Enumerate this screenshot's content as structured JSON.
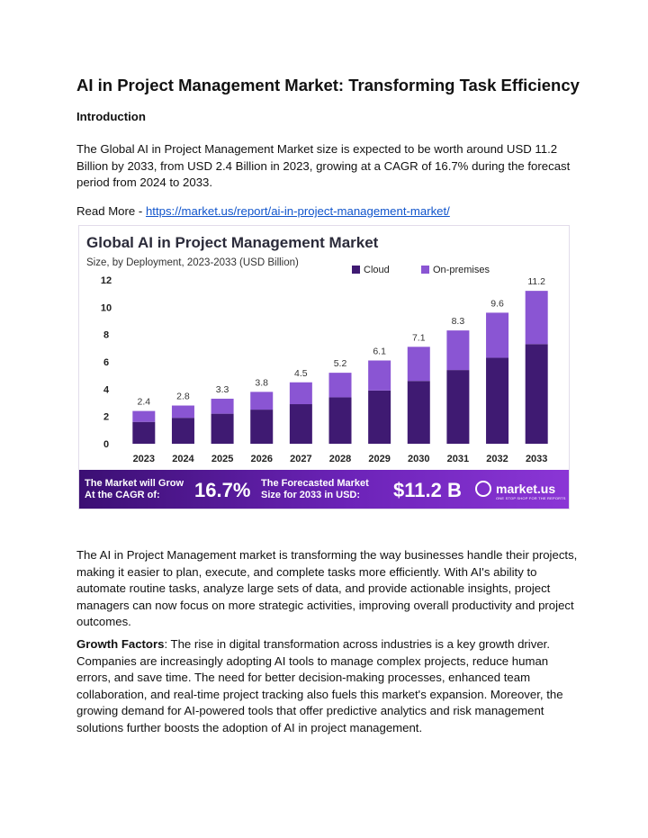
{
  "title": "AI in Project Management Market: Transforming Task Efficiency",
  "intro_heading": "Introduction",
  "paragraph1": "The Global AI in Project Management Market size is expected to be worth around USD 11.2 Billion by 2033, from USD 2.4 Billion in 2023, growing at a CAGR of 16.7% during the forecast period from 2024 to 2033.",
  "read_more_label": "Read More - ",
  "read_more_link": "https://market.us/report/ai-in-project-management-market/",
  "chart_data": {
    "type": "bar",
    "stacked": true,
    "title": "Global AI in Project Management Market",
    "subtitle": "Size, by Deployment, 2023-2033 (USD Billion)",
    "categories": [
      "2023",
      "2024",
      "2025",
      "2026",
      "2027",
      "2028",
      "2029",
      "2030",
      "2031",
      "2032",
      "2033"
    ],
    "series": [
      {
        "name": "Cloud",
        "values": [
          1.6,
          1.9,
          2.2,
          2.5,
          2.9,
          3.4,
          3.9,
          4.6,
          5.4,
          6.3,
          7.3
        ]
      },
      {
        "name": "On-premises",
        "values": [
          0.8,
          0.9,
          1.1,
          1.3,
          1.6,
          1.8,
          2.2,
          2.5,
          2.9,
          3.3,
          3.9
        ]
      }
    ],
    "totals": [
      2.4,
      2.8,
      3.3,
      3.8,
      4.5,
      5.2,
      6.1,
      7.1,
      8.3,
      9.6,
      11.2
    ],
    "total_labels": [
      "2.4",
      "2.8",
      "3.3",
      "3.8",
      "4.5",
      "5.2",
      "6.1",
      "7.1",
      "8.3",
      "9.6",
      "11.2"
    ],
    "yticks": [
      "0",
      "2",
      "4",
      "6",
      "8",
      "10",
      "12"
    ],
    "ylim": [
      0,
      12
    ],
    "legend_position": "top-right",
    "colors": {
      "cloud": "#3f1a72",
      "on_premises": "#8a55d3"
    }
  },
  "banner": {
    "cagr_label_line1": "The Market will Grow",
    "cagr_label_line2": "At the CAGR of:",
    "cagr_value": "16.7%",
    "forecast_label_line1": "The Forecasted Market",
    "forecast_label_line2": "Size for 2033 in USD:",
    "forecast_value": "$11.2 B",
    "logo_name": "market.us",
    "logo_tagline": "ONE STOP SHOP FOR THE REPORTS"
  },
  "paragraph2": "The AI in Project Management market is transforming the way businesses handle their projects, making it easier to plan, execute, and complete tasks more efficiently. With AI's ability to automate routine tasks, analyze large sets of data, and provide actionable insights, project managers can now focus on more strategic activities, improving overall productivity and project outcomes.",
  "growth_label": "Growth Factors",
  "paragraph3": ": The rise in digital transformation across industries is a key growth driver. Companies are increasingly adopting AI tools to manage complex projects, reduce human errors, and save time. The need for better decision-making processes, enhanced team collaboration, and real-time project tracking also fuels this market's expansion. Moreover, the growing demand for AI-powered tools that offer predictive analytics and risk management solutions further boosts the adoption of AI in project management."
}
